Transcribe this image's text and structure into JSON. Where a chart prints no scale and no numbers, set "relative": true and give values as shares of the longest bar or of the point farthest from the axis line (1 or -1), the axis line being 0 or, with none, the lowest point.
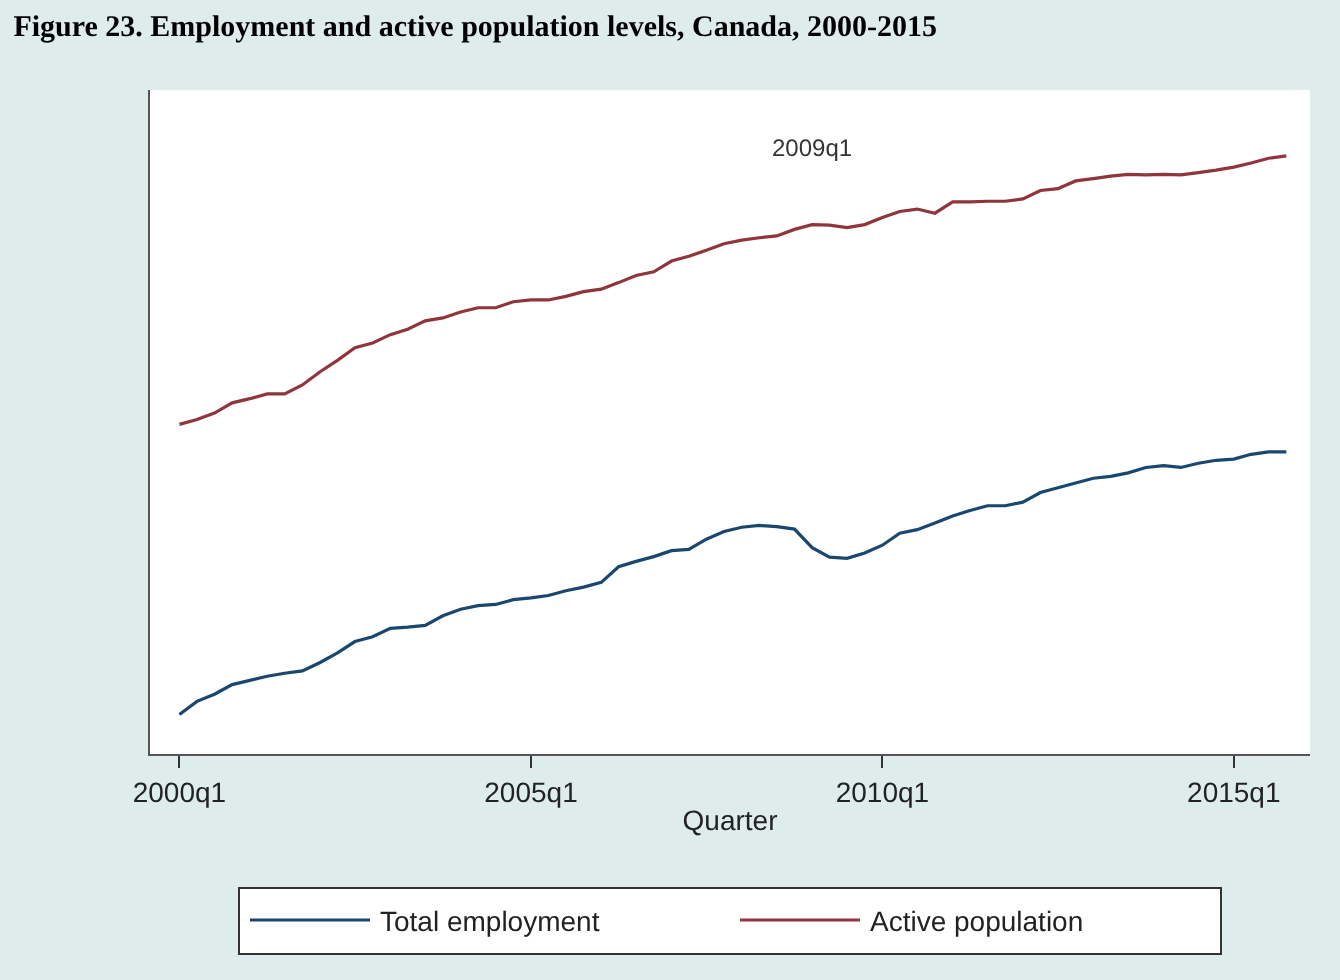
{
  "chart_data": {
    "type": "line",
    "title": "Figure 23. Employment and active population levels, Canada, 2000-2015",
    "xlabel": "Quarter",
    "relative": true,
    "legend": "bottom",
    "marker": "none",
    "line_style": "solid",
    "x": [
      "2000-01",
      "2000-04",
      "2000-07",
      "2000-10",
      "2001-01",
      "2001-04",
      "2001-07",
      "2001-10",
      "2002-01",
      "2002-04",
      "2002-07",
      "2002-10",
      "2003-01",
      "2003-04",
      "2003-07",
      "2003-10",
      "2004-01",
      "2004-04",
      "2004-07",
      "2004-10",
      "2005-01",
      "2005-04",
      "2005-07",
      "2005-10",
      "2006-01",
      "2006-04",
      "2006-07",
      "2006-10",
      "2007-01",
      "2007-04",
      "2007-07",
      "2007-10",
      "2008-01",
      "2008-04",
      "2008-07",
      "2008-10",
      "2009-01",
      "2009-04",
      "2009-07",
      "2009-10",
      "2010-01",
      "2010-04",
      "2010-07",
      "2010-10",
      "2011-01",
      "2011-04",
      "2011-07",
      "2011-10",
      "2012-01",
      "2012-04",
      "2012-07",
      "2012-10",
      "2013-01",
      "2013-04",
      "2013-07",
      "2013-10",
      "2014-01",
      "2014-04",
      "2014-07",
      "2014-10",
      "2015-01",
      "2015-04",
      "2015-07",
      "2015-10"
    ],
    "xlim": [
      "1999-08",
      "2016-02"
    ],
    "xticks": [
      {
        "value": "2000-01",
        "label": "2000q1"
      },
      {
        "value": "2005-01",
        "label": "2005q1"
      },
      {
        "value": "2010-01",
        "label": "2010q1"
      },
      {
        "value": "2015-01",
        "label": "2015q1"
      }
    ],
    "annotations": [
      "2009q1"
    ],
    "series": [
      {
        "name": "Total employment",
        "color": "#1a476f",
        "values": [
          0.066,
          0.088,
          0.1,
          0.116,
          0.123,
          0.13,
          0.135,
          0.139,
          0.153,
          0.169,
          0.188,
          0.196,
          0.21,
          0.212,
          0.215,
          0.231,
          0.242,
          0.248,
          0.25,
          0.258,
          0.261,
          0.265,
          0.273,
          0.279,
          0.287,
          0.313,
          0.322,
          0.33,
          0.34,
          0.342,
          0.359,
          0.372,
          0.379,
          0.382,
          0.38,
          0.376,
          0.345,
          0.329,
          0.327,
          0.336,
          0.349,
          0.369,
          0.375,
          0.386,
          0.398,
          0.407,
          0.415,
          0.415,
          0.421,
          0.437,
          0.445,
          0.453,
          0.461,
          0.464,
          0.47,
          0.479,
          0.482,
          0.479,
          0.486,
          0.491,
          0.493,
          0.501,
          0.505,
          0.505
        ]
      },
      {
        "name": "Active population",
        "color": "#90353b",
        "values": [
          0.551,
          0.559,
          0.57,
          0.587,
          0.594,
          0.602,
          0.602,
          0.617,
          0.639,
          0.658,
          0.679,
          0.687,
          0.701,
          0.71,
          0.724,
          0.729,
          0.739,
          0.746,
          0.746,
          0.756,
          0.759,
          0.759,
          0.765,
          0.773,
          0.777,
          0.788,
          0.8,
          0.806,
          0.824,
          0.832,
          0.842,
          0.853,
          0.859,
          0.863,
          0.866,
          0.877,
          0.885,
          0.884,
          0.88,
          0.885,
          0.897,
          0.907,
          0.911,
          0.904,
          0.923,
          0.923,
          0.924,
          0.924,
          0.928,
          0.942,
          0.945,
          0.958,
          0.962,
          0.966,
          0.969,
          0.968,
          0.969,
          0.968,
          0.972,
          0.976,
          0.981,
          0.988,
          0.996,
          1.0
        ]
      }
    ]
  }
}
